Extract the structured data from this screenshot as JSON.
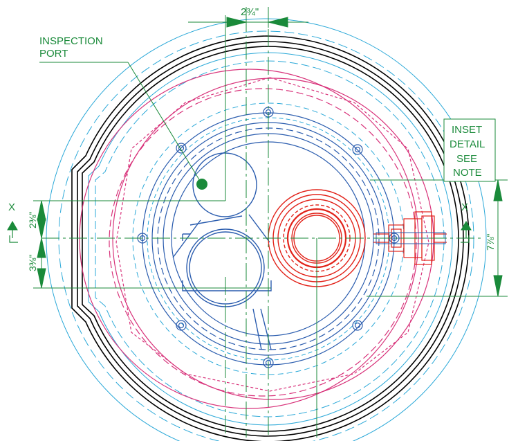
{
  "labels": {
    "inspection_port_line1": "INSPECTION",
    "inspection_port_line2": "PORT",
    "inset_line1": "INSET",
    "inset_line2": "DETAIL",
    "inset_line3": "SEE",
    "inset_line4": "NOTE",
    "section_left": "X",
    "section_right": "X"
  },
  "dimensions": {
    "top_width": "2¾\"",
    "upper_left": "2⅜\"",
    "lower_left": "3⅜\"",
    "right_height": "7⅞\""
  },
  "colors": {
    "dimension_green": "#1a8a3a",
    "outline_black": "#000000",
    "cyan": "#2aa8d8",
    "blue": "#2a5cae",
    "magenta": "#d8327a",
    "red": "#e2231a"
  }
}
